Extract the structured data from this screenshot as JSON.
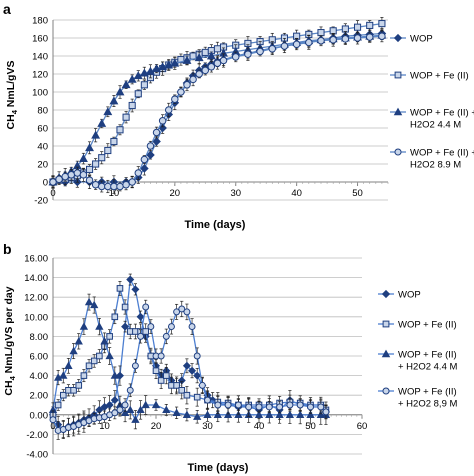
{
  "chart_data": [
    {
      "panel": "a",
      "type": "line",
      "xlabel": "Time (days)",
      "ylabel_main": "CH",
      "ylabel_sub": "4",
      "ylabel_rest": " NmL/gVS",
      "xlim": [
        0,
        55
      ],
      "ylim": [
        -20,
        180
      ],
      "xticks": [
        0,
        10,
        20,
        30,
        40,
        50
      ],
      "yticks": [
        -20,
        0,
        20,
        40,
        60,
        80,
        100,
        120,
        140,
        160,
        180
      ],
      "grid": true,
      "legend_placement": "right",
      "marker_color": "#1f3f80",
      "line_color": "#5b86c5",
      "series": [
        {
          "name": "WOP",
          "legend_lines": [
            "WOP"
          ],
          "marker": "diamond",
          "x": [
            0,
            2,
            4,
            6,
            8,
            10,
            12,
            13,
            14,
            15,
            16,
            17,
            18,
            19,
            20,
            21,
            22,
            23,
            24,
            25,
            26,
            27,
            28,
            30,
            32,
            34,
            36,
            38,
            40,
            42,
            44,
            46,
            48,
            50,
            52,
            54
          ],
          "y": [
            0,
            0,
            0,
            0,
            0,
            0,
            0,
            0,
            5,
            15,
            30,
            45,
            60,
            75,
            88,
            100,
            110,
            118,
            124,
            128,
            131,
            134,
            136,
            140,
            143,
            146,
            149,
            151,
            154,
            156,
            158,
            160,
            162,
            163,
            164,
            165
          ]
        },
        {
          "name": "WOP + Fe (II)",
          "legend_lines": [
            "WOP + Fe (II)"
          ],
          "marker": "square",
          "x": [
            0,
            1,
            2,
            3,
            4,
            5,
            6,
            7,
            8,
            9,
            10,
            11,
            12,
            13,
            14,
            15,
            16,
            17,
            18,
            19,
            20,
            21,
            22,
            23,
            24,
            25,
            26,
            27,
            28,
            30,
            32,
            34,
            36,
            38,
            40,
            42,
            44,
            46,
            48,
            50,
            52,
            54
          ],
          "y": [
            0,
            2,
            3,
            5,
            7,
            10,
            14,
            20,
            27,
            35,
            45,
            58,
            72,
            85,
            98,
            108,
            116,
            122,
            126,
            130,
            133,
            136,
            138,
            140,
            142,
            144,
            146,
            148,
            150,
            152,
            154,
            156,
            158,
            160,
            162,
            164,
            166,
            168,
            170,
            172,
            174,
            176
          ]
        },
        {
          "name": "WOP + Fe (II) + H2O2 4.4 M",
          "legend_lines": [
            "WOP + Fe (II) +",
            "H2O2 4.4 M"
          ],
          "marker": "triangle",
          "x": [
            0,
            1,
            2,
            3,
            4,
            5,
            6,
            7,
            8,
            9,
            10,
            11,
            12,
            13,
            14,
            15,
            16,
            17,
            18,
            19,
            20,
            22,
            24,
            26,
            28,
            30,
            32,
            34,
            36,
            38,
            40,
            42,
            44,
            46,
            48,
            50,
            52,
            54
          ],
          "y": [
            0,
            5,
            8,
            12,
            18,
            26,
            38,
            52,
            65,
            78,
            90,
            100,
            108,
            114,
            118,
            121,
            123,
            126,
            128,
            130,
            132,
            135,
            138,
            140,
            143,
            145,
            147,
            149,
            151,
            153,
            155,
            157,
            158,
            159,
            160,
            161,
            162,
            163
          ]
        },
        {
          "name": "WOP + Fe (II) + H2O2 8.9 M",
          "legend_lines": [
            "WOP + Fe (II) +",
            "H2O2 8.9 M"
          ],
          "marker": "circle",
          "x": [
            0,
            1,
            2,
            3,
            4,
            5,
            6,
            7,
            8,
            9,
            10,
            11,
            12,
            13,
            14,
            15,
            16,
            17,
            18,
            19,
            20,
            21,
            22,
            23,
            24,
            25,
            26,
            27,
            28,
            30,
            32,
            34,
            36,
            38,
            40,
            42,
            44,
            46,
            48,
            50,
            52,
            54
          ],
          "y": [
            0,
            3,
            6,
            8,
            10,
            8,
            2,
            -3,
            -5,
            -5,
            -5,
            -5,
            -3,
            0,
            10,
            25,
            40,
            55,
            68,
            80,
            92,
            100,
            108,
            114,
            120,
            124,
            128,
            132,
            135,
            139,
            142,
            145,
            148,
            151,
            153,
            155,
            157,
            158,
            159,
            160,
            161,
            162
          ]
        }
      ]
    },
    {
      "panel": "b",
      "type": "line",
      "xlabel": "Time (days)",
      "ylabel_main": "CH",
      "ylabel_sub": "4",
      "ylabel_rest": " NmL/gVS per day",
      "xlim": [
        0,
        60
      ],
      "ylim": [
        -4,
        16
      ],
      "xticks": [
        0,
        10,
        20,
        30,
        40,
        50,
        60
      ],
      "yticks": [
        -4,
        -2,
        0,
        2,
        4,
        6,
        8,
        10,
        12,
        14,
        16
      ],
      "ytick_labels": [
        "-4.00",
        "-2.00",
        "0.00",
        "2.00",
        "4.00",
        "6.00",
        "8.00",
        "10.00",
        "12.00",
        "14.00",
        "16.00"
      ],
      "grid": true,
      "legend_placement": "right",
      "marker_color": "#1f3f80",
      "line_color": "#4d7fd1",
      "series": [
        {
          "name": "WOP",
          "legend_lines": [
            "WOP"
          ],
          "marker": "diamond",
          "x": [
            0,
            1,
            2,
            3,
            4,
            5,
            6,
            7,
            8,
            9,
            10,
            11,
            12,
            13,
            14,
            15,
            16,
            17,
            18,
            19,
            20,
            21,
            22,
            23,
            24,
            25,
            26,
            27,
            28,
            29,
            30,
            31,
            32,
            34,
            36,
            38,
            40,
            42,
            44,
            46,
            48,
            50,
            52,
            53
          ],
          "y": [
            0,
            -1,
            -1.5,
            -1.2,
            -1,
            -0.8,
            -0.5,
            -0.3,
            0,
            0.5,
            0.8,
            1,
            1.5,
            4,
            9,
            13.8,
            12.8,
            10,
            8,
            6,
            5,
            4,
            4.5,
            3.5,
            3,
            3.5,
            5,
            4.5,
            4,
            3,
            2,
            1.5,
            1.2,
            1,
            0.8,
            0.8,
            0.5,
            1,
            0.5,
            1.5,
            1,
            1,
            1,
            0.3
          ]
        },
        {
          "name": "WOP + Fe (II)",
          "legend_lines": [
            "WOP + Fe (II)"
          ],
          "marker": "square",
          "x": [
            0,
            1,
            2,
            3,
            4,
            5,
            6,
            7,
            8,
            9,
            10,
            11,
            12,
            13,
            14,
            15,
            16,
            17,
            18,
            19,
            20,
            21,
            22,
            23,
            24,
            25,
            26,
            28,
            30,
            32,
            34,
            36,
            38,
            40,
            42,
            44,
            46,
            48,
            50,
            52,
            53
          ],
          "y": [
            0,
            1,
            2,
            2.5,
            2.5,
            3,
            4,
            5,
            5.5,
            6,
            7,
            8,
            10,
            12.9,
            11,
            8.5,
            8.5,
            8.5,
            8.5,
            6,
            4.5,
            3.5,
            4,
            3,
            3,
            2.5,
            2,
            1.8,
            1.5,
            1.3,
            1.2,
            1,
            1,
            1,
            1,
            1.2,
            1.3,
            1.2,
            1,
            1,
            0.5
          ]
        },
        {
          "name": "WOP + Fe (II) + H2O2 4.4 M",
          "legend_lines": [
            "WOP + Fe (II)",
            "+ H2O2 4.4 M"
          ],
          "marker": "triangle",
          "x": [
            0,
            1,
            2,
            3,
            4,
            5,
            6,
            7,
            8,
            9,
            10,
            11,
            12,
            13,
            14,
            15,
            16,
            17,
            18,
            20,
            22,
            24,
            26,
            28,
            30,
            32,
            34,
            36,
            38,
            40,
            42,
            44,
            46,
            48,
            50,
            52,
            53
          ],
          "y": [
            0.5,
            3.8,
            4,
            5,
            6.5,
            7.5,
            9,
            11.5,
            11.2,
            9,
            7.5,
            6,
            4,
            1,
            0.2,
            0.5,
            -0.5,
            0.5,
            1,
            1,
            0.5,
            0.2,
            0,
            -0.2,
            0,
            0,
            0,
            0,
            0,
            0,
            0,
            0,
            0,
            0,
            0,
            0,
            0
          ]
        },
        {
          "name": "WOP + Fe (II) + H2O2 8,9 M",
          "legend_lines": [
            "WOP + Fe (II)",
            "+ H2O2 8,9 M"
          ],
          "marker": "circle",
          "x": [
            0,
            1,
            2,
            3,
            4,
            5,
            6,
            7,
            8,
            9,
            10,
            11,
            12,
            13,
            14,
            15,
            16,
            17,
            18,
            19,
            20,
            21,
            22,
            23,
            24,
            25,
            26,
            27,
            28,
            29,
            30,
            32,
            34,
            36,
            38,
            40,
            42,
            44,
            46,
            48,
            50,
            52,
            53
          ],
          "y": [
            -0.5,
            -1.6,
            -1.5,
            -1.3,
            -1.2,
            -1,
            -0.8,
            -0.6,
            -0.4,
            -0.3,
            -0.2,
            0,
            0.2,
            0.5,
            1,
            2.5,
            5,
            8,
            11,
            9,
            6,
            6,
            8,
            9,
            10.5,
            10.8,
            10.5,
            9,
            6,
            3,
            1.5,
            1,
            1,
            1,
            0.8,
            0.8,
            0.8,
            0.8,
            1,
            1,
            0.8,
            0.8,
            0.3
          ]
        }
      ]
    }
  ]
}
